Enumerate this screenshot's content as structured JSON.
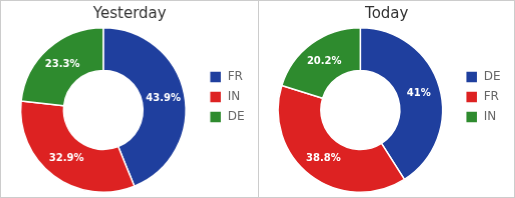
{
  "chart_data": [
    {
      "type": "doughnut",
      "title": "Yesterday",
      "categories": [
        "FR",
        "IN",
        "DE"
      ],
      "values": [
        43.9,
        32.9,
        23.3
      ],
      "value_labels": [
        "43.9%",
        "32.9%",
        "23.3%"
      ],
      "colors": [
        "#1f3f9e",
        "#dd2222",
        "#2e8b2e"
      ],
      "data_labels": true,
      "legend": "right"
    },
    {
      "type": "doughnut",
      "title": "Today",
      "categories": [
        "DE",
        "FR",
        "IN"
      ],
      "values": [
        41.0,
        38.8,
        20.2
      ],
      "value_labels": [
        "41%",
        "38.8%",
        "20.2%"
      ],
      "colors": [
        "#1f3f9e",
        "#dd2222",
        "#2e8b2e"
      ],
      "data_labels": true,
      "legend": "right"
    }
  ]
}
